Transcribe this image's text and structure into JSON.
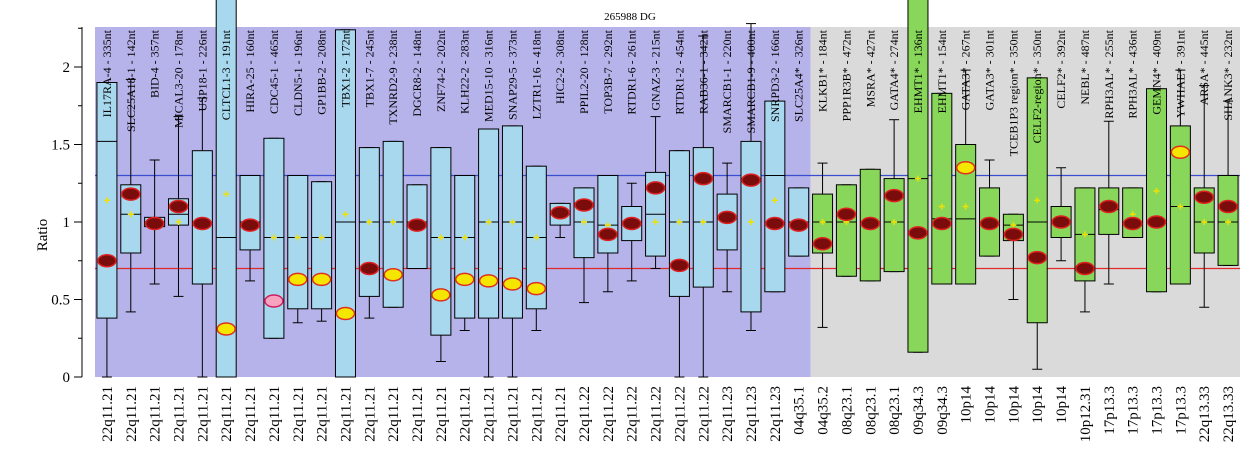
{
  "chart_data": {
    "type": "box",
    "title": "265988 DG",
    "ylabel": "Ratio",
    "ylim": [
      0,
      4
    ],
    "yticks": [
      0,
      0.5,
      1,
      1.5,
      2,
      2.5,
      3,
      3.5
    ],
    "reference_lines": [
      {
        "value": 1.3,
        "color": "#3a4fd0"
      },
      {
        "value": 0.7,
        "color": "#e02a2a"
      }
    ],
    "colors": {
      "region1_bg": "#b6b2ea",
      "region2_bg": "#dadada",
      "box1": "#a8d8ee",
      "box2": "#88d75a",
      "marker_dark": "#7a0c0c",
      "marker_light": "#f5e600",
      "mean_marker": "#f0e000"
    },
    "region1_count": 30,
    "probes": [
      {
        "label": "IL17RA-4 - 335nt",
        "category": "22q11.21",
        "q1": 0.38,
        "q3": 1.9,
        "median": 1.52,
        "wmin": 0.0,
        "wmax": 1.9,
        "value": 0.75,
        "mean": 1.14,
        "marker": "dark"
      },
      {
        "label": "SLC25A18-1 - 142nt",
        "category": "22q11.21",
        "q1": 0.8,
        "q3": 1.24,
        "median": 1.05,
        "wmin": 0.42,
        "wmax": 1.92,
        "value": 1.18,
        "mean": 1.05,
        "marker": "dark"
      },
      {
        "label": "BID-4 - 357nt",
        "category": "22q11.21",
        "q1": 0.97,
        "q3": 1.03,
        "median": 1.0,
        "wmin": 0.6,
        "wmax": 1.4,
        "value": 0.99,
        "mean": 1.0,
        "marker": "dark"
      },
      {
        "label": "MICAL3-20 - 178nt",
        "category": "22q11.21",
        "q1": 0.98,
        "q3": 1.15,
        "median": 1.05,
        "wmin": 0.52,
        "wmax": 1.68,
        "value": 1.1,
        "mean": 1.0,
        "marker": "dark"
      },
      {
        "label": "USP18-1 - 226nt",
        "category": "22q11.21",
        "q1": 0.6,
        "q3": 1.46,
        "median": 1.0,
        "wmin": 0.0,
        "wmax": 1.8,
        "value": 0.99,
        "mean": 1.0,
        "marker": "dark"
      },
      {
        "label": "CLTCL1-3 - 191nt",
        "category": "22q11.21",
        "q1": 0.0,
        "q3": 2.8,
        "median": 0.9,
        "wmin": 0.0,
        "wmax": 2.8,
        "value": 0.31,
        "mean": 1.18,
        "marker": "light"
      },
      {
        "label": "HIRA-25 - 160nt",
        "category": "22q11.21",
        "q1": 0.82,
        "q3": 1.3,
        "median": 1.0,
        "wmin": 0.62,
        "wmax": 1.3,
        "value": 0.98,
        "mean": 1.0,
        "marker": "dark"
      },
      {
        "label": "CDC45-1 - 465nt",
        "category": "22q11.21",
        "q1": 0.25,
        "q3": 1.54,
        "median": 0.9,
        "wmin": 0.25,
        "wmax": 1.54,
        "value": 0.49,
        "mean": 0.9,
        "marker": "pink"
      },
      {
        "label": "CLDN5-1 - 196nt",
        "category": "22q11.21",
        "q1": 0.44,
        "q3": 1.3,
        "median": 0.9,
        "wmin": 0.35,
        "wmax": 1.3,
        "value": 0.63,
        "mean": 0.9,
        "marker": "light"
      },
      {
        "label": "GP1BB-2 - 208nt",
        "category": "22q11.21",
        "q1": 0.44,
        "q3": 1.26,
        "median": 0.9,
        "wmin": 0.36,
        "wmax": 1.26,
        "value": 0.63,
        "mean": 0.9,
        "marker": "light"
      },
      {
        "label": "TBX1-2 - 172nt",
        "category": "22q11.21",
        "q1": 0.0,
        "q3": 2.24,
        "median": 1.0,
        "wmin": 0.0,
        "wmax": 2.24,
        "value": 0.41,
        "mean": 1.05,
        "marker": "light"
      },
      {
        "label": "TBX1-7 - 245nt",
        "category": "22q11.21",
        "q1": 0.52,
        "q3": 1.48,
        "median": 1.0,
        "wmin": 0.38,
        "wmax": 1.48,
        "value": 0.7,
        "mean": 1.0,
        "marker": "dark"
      },
      {
        "label": "TXNRD2-9 - 238nt",
        "category": "22q11.21",
        "q1": 0.45,
        "q3": 1.52,
        "median": 1.0,
        "wmin": 0.45,
        "wmax": 1.52,
        "value": 0.66,
        "mean": 1.0,
        "marker": "light"
      },
      {
        "label": "DGCR8-2 - 148nt",
        "category": "22q11.21",
        "q1": 0.7,
        "q3": 1.24,
        "median": 1.0,
        "wmin": 0.7,
        "wmax": 1.24,
        "value": 0.98,
        "mean": 1.0,
        "marker": "dark"
      },
      {
        "label": "ZNF74-2 - 202nt",
        "category": "22q11.21",
        "q1": 0.27,
        "q3": 1.48,
        "median": 0.9,
        "wmin": 0.1,
        "wmax": 1.48,
        "value": 0.53,
        "mean": 0.9,
        "marker": "light"
      },
      {
        "label": "KLH22-2 - 283nt",
        "category": "22q11.21",
        "q1": 0.38,
        "q3": 1.3,
        "median": 0.9,
        "wmin": 0.3,
        "wmax": 1.3,
        "value": 0.63,
        "mean": 0.9,
        "marker": "light"
      },
      {
        "label": "MED15-10 - 316nt",
        "category": "22q11.21",
        "q1": 0.38,
        "q3": 1.6,
        "median": 1.0,
        "wmin": 0.0,
        "wmax": 1.6,
        "value": 0.62,
        "mean": 1.0,
        "marker": "light"
      },
      {
        "label": "SNAP29-5 - 373nt",
        "category": "22q11.21",
        "q1": 0.38,
        "q3": 1.62,
        "median": 1.0,
        "wmin": 0.0,
        "wmax": 1.62,
        "value": 0.6,
        "mean": 1.0,
        "marker": "light"
      },
      {
        "label": "LZTR1-16 - 418nt",
        "category": "22q11.21",
        "q1": 0.44,
        "q3": 1.36,
        "median": 0.9,
        "wmin": 0.3,
        "wmax": 1.36,
        "value": 0.57,
        "mean": 0.9,
        "marker": "light"
      },
      {
        "label": "HIC2-2 - 308nt",
        "category": "22q11.21",
        "q1": 0.98,
        "q3": 1.12,
        "median": 1.05,
        "wmin": 0.9,
        "wmax": 1.12,
        "value": 1.06,
        "mean": 1.05,
        "marker": "dark"
      },
      {
        "label": "PPIL2-20 - 128nt",
        "category": "22q11.22",
        "q1": 0.77,
        "q3": 1.22,
        "median": 1.0,
        "wmin": 0.48,
        "wmax": 1.22,
        "value": 1.11,
        "mean": 1.0,
        "marker": "dark"
      },
      {
        "label": "TOP3B-7 - 292nt",
        "category": "22q11.22",
        "q1": 0.8,
        "q3": 1.3,
        "median": 0.98,
        "wmin": 0.55,
        "wmax": 1.3,
        "value": 0.92,
        "mean": 0.98,
        "marker": "dark"
      },
      {
        "label": "RTDR1-6 - 261nt",
        "category": "22q11.22",
        "q1": 0.88,
        "q3": 1.1,
        "median": 1.0,
        "wmin": 0.62,
        "wmax": 1.25,
        "value": 0.99,
        "mean": 1.0,
        "marker": "dark"
      },
      {
        "label": "GNAZ-3 - 215nt",
        "category": "22q11.22",
        "q1": 0.78,
        "q3": 1.32,
        "median": 1.05,
        "wmin": 0.7,
        "wmax": 1.68,
        "value": 1.22,
        "mean": 1.0,
        "marker": "dark"
      },
      {
        "label": "RTDR1-2 - 454nt",
        "category": "22q11.22",
        "q1": 0.52,
        "q3": 1.46,
        "median": 1.0,
        "wmin": 0.0,
        "wmax": 1.46,
        "value": 0.72,
        "mean": 1.0,
        "marker": "dark"
      },
      {
        "label": "RAB36-1 - 342nt",
        "category": "22q11.22",
        "q1": 0.58,
        "q3": 1.48,
        "median": 1.0,
        "wmin": 0.0,
        "wmax": 2.2,
        "value": 1.28,
        "mean": 1.0,
        "marker": "dark"
      },
      {
        "label": "SMARCB1-1 - 220nt",
        "category": "22q11.23",
        "q1": 0.82,
        "q3": 1.18,
        "median": 1.02,
        "wmin": 0.55,
        "wmax": 1.38,
        "value": 1.03,
        "mean": 1.02,
        "marker": "dark"
      },
      {
        "label": "SMARCB1-9 - 400nt",
        "category": "22q11.23",
        "q1": 0.42,
        "q3": 1.52,
        "median": 1.28,
        "wmin": 0.3,
        "wmax": 2.28,
        "value": 1.27,
        "mean": 1.0,
        "marker": "dark"
      },
      {
        "label": "SNRPD3-2 - 166nt",
        "category": "22q11.23",
        "q1": 0.55,
        "q3": 1.78,
        "median": 1.3,
        "wmin": 0.55,
        "wmax": 1.78,
        "value": 0.99,
        "mean": 1.14,
        "marker": "dark"
      },
      {
        "label": "SLC25A4* - 326nt",
        "category": "04q35.1",
        "q1": 0.78,
        "q3": 1.22,
        "median": 1.0,
        "wmin": 0.78,
        "wmax": 1.22,
        "value": 0.98,
        "mean": 1.0,
        "marker": "dark"
      },
      {
        "label": "KLKB1* - 184nt",
        "category": "04q35.2",
        "q1": 0.8,
        "q3": 1.18,
        "median": 1.0,
        "wmin": 0.32,
        "wmax": 1.38,
        "value": 0.86,
        "mean": 1.0,
        "marker": "dark"
      },
      {
        "label": "PPP1R3B* - 472nt",
        "category": "08q23.1",
        "q1": 0.65,
        "q3": 1.24,
        "median": 1.0,
        "wmin": 0.65,
        "wmax": 1.24,
        "value": 1.05,
        "mean": 1.0,
        "marker": "dark"
      },
      {
        "label": "MSRA* - 427nt",
        "category": "08q23.1",
        "q1": 0.62,
        "q3": 1.34,
        "median": 1.0,
        "wmin": 0.62,
        "wmax": 1.34,
        "value": 0.99,
        "mean": 1.0,
        "marker": "dark"
      },
      {
        "label": "GATA4* - 274nt",
        "category": "08q23.1",
        "q1": 0.68,
        "q3": 1.28,
        "median": 1.0,
        "wmin": 0.68,
        "wmax": 1.66,
        "value": 1.17,
        "mean": 1.0,
        "marker": "dark"
      },
      {
        "label": "EHMT1* - 136nt",
        "category": "09q34.3",
        "q1": 0.16,
        "q3": 2.85,
        "median": 1.28,
        "wmin": 0.16,
        "wmax": 2.85,
        "value": 0.93,
        "mean": 1.28,
        "marker": "dark"
      },
      {
        "label": "EHMT1* - 154nt",
        "category": "09q34.3",
        "q1": 0.6,
        "q3": 1.83,
        "median": 1.02,
        "wmin": 0.6,
        "wmax": 1.83,
        "value": 0.99,
        "mean": 1.1,
        "marker": "dark"
      },
      {
        "label": "GATA3* - 267nt",
        "category": "10p14",
        "q1": 0.6,
        "q3": 1.5,
        "median": 1.02,
        "wmin": 0.6,
        "wmax": 1.98,
        "value": 1.35,
        "mean": 1.1,
        "marker": "light"
      },
      {
        "label": "GATA3* - 301nt",
        "category": "10p14",
        "q1": 0.78,
        "q3": 1.22,
        "median": 1.0,
        "wmin": 0.78,
        "wmax": 1.4,
        "value": 0.99,
        "mean": 1.0,
        "marker": "dark"
      },
      {
        "label": "TCEB1P3 region* - 350nt",
        "category": "10p14",
        "q1": 0.88,
        "q3": 1.05,
        "median": 0.98,
        "wmin": 0.5,
        "wmax": 1.05,
        "value": 0.92,
        "mean": 0.98,
        "marker": "dark"
      },
      {
        "label": "CELF2-region* - 350nt",
        "category": "10p14",
        "q1": 0.35,
        "q3": 1.93,
        "median": 1.0,
        "wmin": 0.05,
        "wmax": 1.93,
        "value": 0.77,
        "mean": 1.14,
        "marker": "dark"
      },
      {
        "label": "CELF2* - 392nt",
        "category": "10p14",
        "q1": 0.9,
        "q3": 1.1,
        "median": 1.0,
        "wmin": 0.75,
        "wmax": 1.35,
        "value": 1.0,
        "mean": 1.0,
        "marker": "dark"
      },
      {
        "label": "NEBL* - 487nt",
        "category": "10p12.31",
        "q1": 0.62,
        "q3": 1.22,
        "median": 0.92,
        "wmin": 0.42,
        "wmax": 1.22,
        "value": 0.7,
        "mean": 0.92,
        "marker": "dark"
      },
      {
        "label": "RPH3AL* - 255nt",
        "category": "17p13.3",
        "q1": 0.92,
        "q3": 1.22,
        "median": 1.08,
        "wmin": 0.6,
        "wmax": 1.65,
        "value": 1.1,
        "mean": 1.08,
        "marker": "dark"
      },
      {
        "label": "RPH3AL* - 436nt",
        "category": "17p13.3",
        "q1": 0.9,
        "q3": 1.22,
        "median": 1.0,
        "wmin": 0.9,
        "wmax": 1.22,
        "value": 0.99,
        "mean": 1.05,
        "marker": "dark"
      },
      {
        "label": "GEMN4* - 409nt",
        "category": "17p13.3",
        "q1": 0.55,
        "q3": 1.86,
        "median": 1.0,
        "wmin": 0.55,
        "wmax": 1.86,
        "value": 1.0,
        "mean": 1.2,
        "marker": "dark"
      },
      {
        "label": "YWHAE* - 391nt",
        "category": "17p13.3",
        "q1": 0.6,
        "q3": 1.62,
        "median": 1.1,
        "wmin": 0.6,
        "wmax": 1.98,
        "value": 1.45,
        "mean": 1.1,
        "marker": "light"
      },
      {
        "label": "ARSA* - 445nt",
        "category": "22q13.33",
        "q1": 0.8,
        "q3": 1.22,
        "median": 1.0,
        "wmin": 0.45,
        "wmax": 1.88,
        "value": 1.16,
        "mean": 1.0,
        "marker": "dark"
      },
      {
        "label": "SHANK3* - 232nt",
        "category": "22q13.33",
        "q1": 0.72,
        "q3": 1.3,
        "median": 1.0,
        "wmin": 0.72,
        "wmax": 1.78,
        "value": 1.1,
        "mean": 1.0,
        "marker": "dark"
      }
    ]
  }
}
